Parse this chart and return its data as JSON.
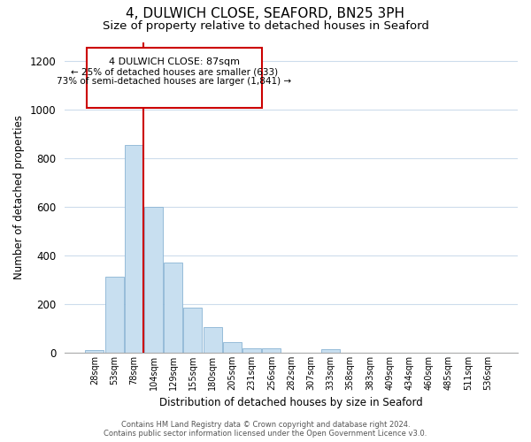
{
  "title": "4, DULWICH CLOSE, SEAFORD, BN25 3PH",
  "subtitle": "Size of property relative to detached houses in Seaford",
  "xlabel": "Distribution of detached houses by size in Seaford",
  "ylabel": "Number of detached properties",
  "bin_labels": [
    "28sqm",
    "53sqm",
    "78sqm",
    "104sqm",
    "129sqm",
    "155sqm",
    "180sqm",
    "205sqm",
    "231sqm",
    "256sqm",
    "282sqm",
    "307sqm",
    "333sqm",
    "358sqm",
    "383sqm",
    "409sqm",
    "434sqm",
    "460sqm",
    "485sqm",
    "511sqm",
    "536sqm"
  ],
  "bar_values": [
    10,
    315,
    855,
    600,
    370,
    185,
    105,
    45,
    20,
    20,
    0,
    0,
    15,
    0,
    0,
    0,
    0,
    0,
    0,
    0,
    0
  ],
  "bar_color": "#c8dff0",
  "bar_edge_color": "#8ab4d4",
  "vline_color": "#cc0000",
  "ylim": [
    0,
    1280
  ],
  "yticks": [
    0,
    200,
    400,
    600,
    800,
    1000,
    1200
  ],
  "annotation_title": "4 DULWICH CLOSE: 87sqm",
  "annotation_line1": "← 25% of detached houses are smaller (633)",
  "annotation_line2": "73% of semi-detached houses are larger (1,841) →",
  "annotation_box_color": "#ffffff",
  "annotation_border_color": "#cc0000",
  "footer_line1": "Contains HM Land Registry data © Crown copyright and database right 2024.",
  "footer_line2": "Contains public sector information licensed under the Open Government Licence v3.0.",
  "background_color": "#ffffff",
  "grid_color": "#cddcec",
  "title_fontsize": 11,
  "subtitle_fontsize": 9.5,
  "footer_fontsize": 6
}
